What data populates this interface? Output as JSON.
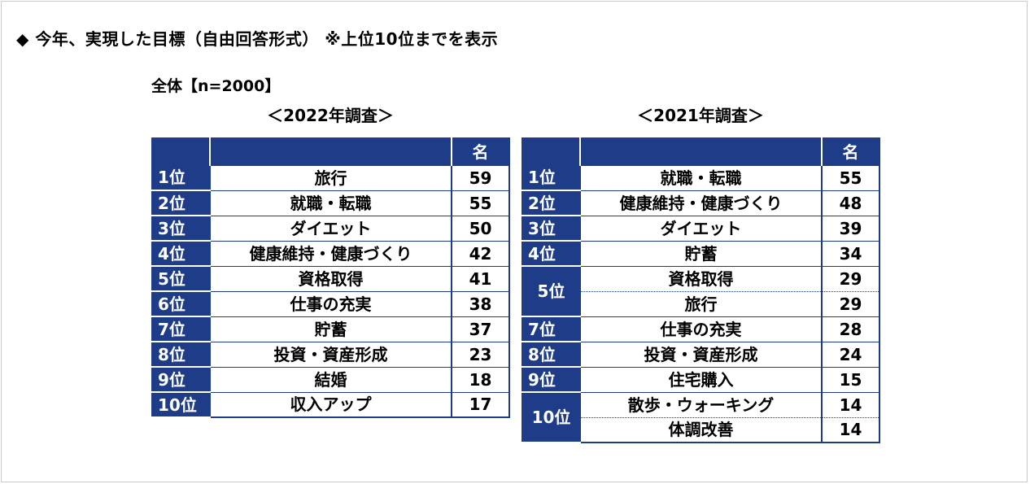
{
  "heading": "◆ 今年、実現した目標（自由回答形式） ※上位10位までを表示",
  "subtitle": "全体【n=2000】",
  "chart_data": [
    {
      "type": "table",
      "title": "＜2022年調査＞",
      "columns": [
        "",
        "",
        "名"
      ],
      "rows": [
        {
          "rank": "1位",
          "item": "旅行",
          "count": 59
        },
        {
          "rank": "2位",
          "item": "就職・転職",
          "count": 55
        },
        {
          "rank": "3位",
          "item": "ダイエット",
          "count": 50
        },
        {
          "rank": "4位",
          "item": "健康維持・健康づくり",
          "count": 42
        },
        {
          "rank": "5位",
          "item": "資格取得",
          "count": 41
        },
        {
          "rank": "6位",
          "item": "仕事の充実",
          "count": 38
        },
        {
          "rank": "7位",
          "item": "貯蓄",
          "count": 37
        },
        {
          "rank": "8位",
          "item": "投資・資産形成",
          "count": 23
        },
        {
          "rank": "9位",
          "item": "結婚",
          "count": 18
        },
        {
          "rank": "10位",
          "item": "収入アップ",
          "count": 17
        }
      ]
    },
    {
      "type": "table",
      "title": "＜2021年調査＞",
      "columns": [
        "",
        "",
        "名"
      ],
      "rows": [
        {
          "rank": "1位",
          "item": "就職・転職",
          "count": 55
        },
        {
          "rank": "2位",
          "item": "健康維持・健康づくり",
          "count": 48
        },
        {
          "rank": "3位",
          "item": "ダイエット",
          "count": 39
        },
        {
          "rank": "4位",
          "item": "貯蓄",
          "count": 34
        },
        {
          "rank": "5位",
          "item": "資格取得",
          "count": 29
        },
        {
          "rank": "5位",
          "item": "旅行",
          "count": 29
        },
        {
          "rank": "7位",
          "item": "仕事の充実",
          "count": 28
        },
        {
          "rank": "8位",
          "item": "投資・資産形成",
          "count": 24
        },
        {
          "rank": "9位",
          "item": "住宅購入",
          "count": 15
        },
        {
          "rank": "10位",
          "item": "散歩・ウォーキング",
          "count": 14
        },
        {
          "rank": "10位",
          "item": "体調改善",
          "count": 14
        }
      ]
    }
  ],
  "colors": {
    "header_bg": "#1f3c88",
    "rank_bg": "#1f3c88",
    "header_text": "#ffffff",
    "frame_border": "#c9c9c9"
  }
}
